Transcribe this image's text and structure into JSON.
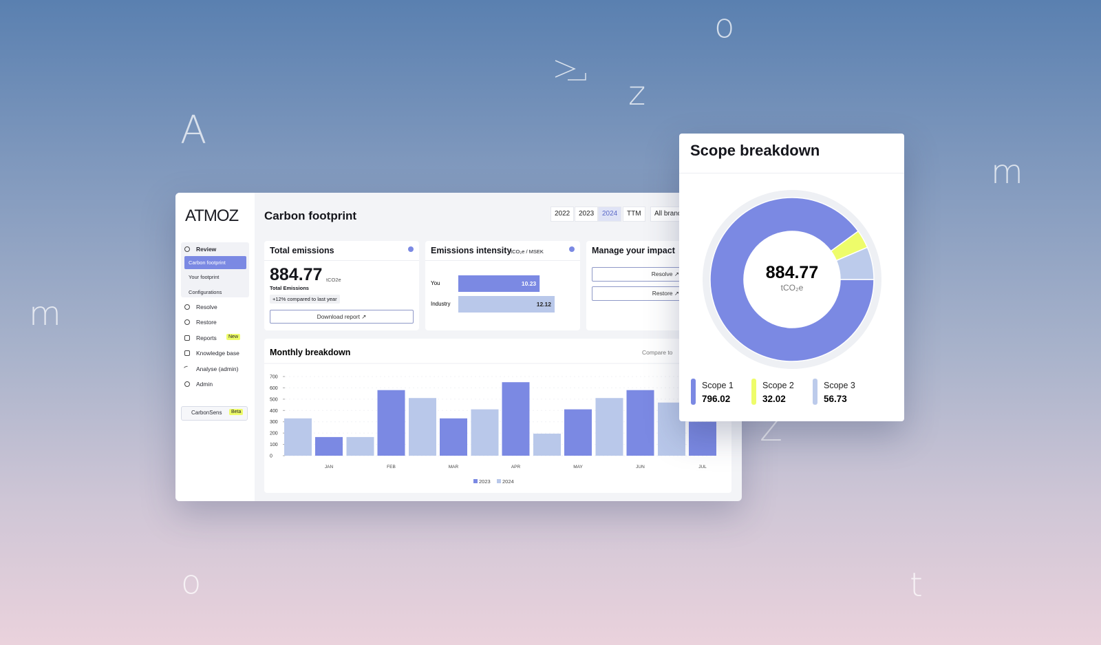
{
  "decor": [
    "o",
    "z",
    "A",
    "m",
    "m",
    "o",
    "Z",
    "t"
  ],
  "sidebar": {
    "logo": "ATMOZ",
    "review": "Review",
    "review_items": [
      "Carbon footprint",
      "Your footprint",
      "Configurations"
    ],
    "items": [
      "Resolve",
      "Restore",
      "Reports",
      "Knowledge base",
      "Analyse (admin)",
      "Admin"
    ],
    "reports_badge": "New",
    "carbonsens": "CarbonSens",
    "carbonsens_badge": "Beta"
  },
  "header": {
    "title": "Carbon footprint",
    "years": [
      "2022",
      "2023",
      "2024",
      "TTM"
    ],
    "filter": "All brands"
  },
  "total_emissions": {
    "title": "Total emissions",
    "value": 884.77,
    "unit": "tCO2e",
    "caption": "Total Emissions",
    "change": "+12% compared to last year",
    "button": "Download report ↗"
  },
  "emissions_intensity": {
    "type": "bar",
    "title": "Emissions intensity",
    "unit": "tCO₂e / MSEK",
    "categories": [
      "You",
      "Industry"
    ],
    "values": [
      10.23,
      12.12
    ],
    "colors": [
      "#7b89e3",
      "#b9c8ea"
    ]
  },
  "manage_impact": {
    "title": "Manage your impact",
    "buttons": [
      "Resolve ↗",
      "Restore ↗"
    ]
  },
  "chart_data": {
    "type": "bar",
    "title": "Monthly breakdown",
    "control": "Compare to",
    "categories": [
      "JAN",
      "FEB",
      "MAR",
      "APR",
      "MAY",
      "JUN",
      "JUL"
    ],
    "series": [
      {
        "name": "2023",
        "color": "#7b89e3",
        "values": [
          165,
          580,
          330,
          650,
          410,
          580,
          300
        ]
      },
      {
        "name": "2024",
        "color": "#b9c8ea",
        "values": [
          330,
          165,
          510,
          410,
          195,
          510,
          470
        ]
      }
    ],
    "ylim": [
      0,
      700
    ],
    "yticks": [
      0,
      100,
      200,
      300,
      400,
      500,
      600,
      700
    ]
  },
  "scope_breakdown": {
    "type": "pie",
    "title": "Scope breakdown",
    "total": 884.77,
    "unit": "tCO₂e",
    "categories": [
      "Scope 1",
      "Scope 2",
      "Scope 3"
    ],
    "values": [
      796.02,
      32.02,
      56.73
    ],
    "colors": [
      "#7b89e3",
      "#eefc6a",
      "#bccbeb"
    ]
  }
}
